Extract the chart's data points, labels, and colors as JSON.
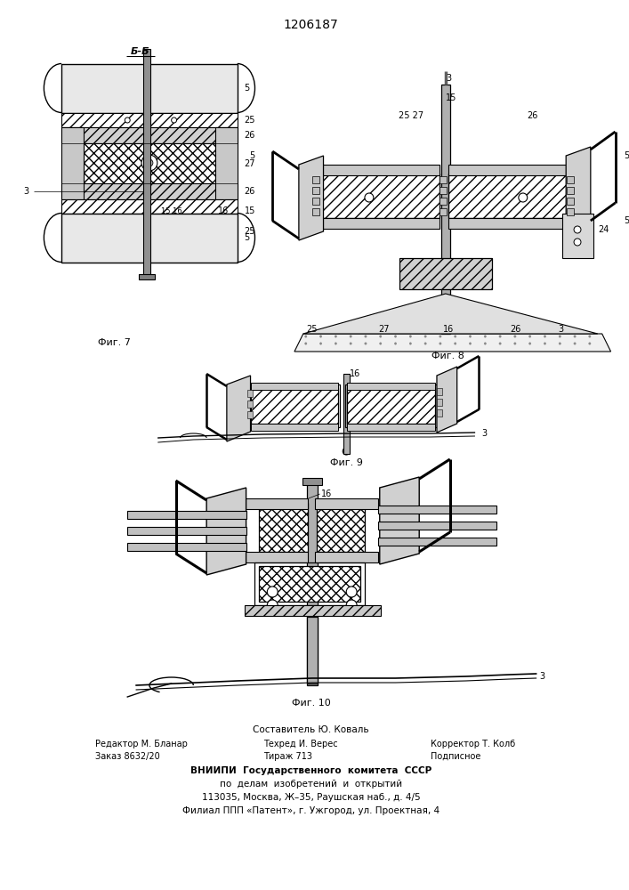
{
  "patent_number": "1206187",
  "fig7_label": "Фиг. 7",
  "fig8_label": "Фиг. 8",
  "fig9_label": "Фиг. 9",
  "fig10_label": "Фиг. 10",
  "section_label": "Б-Б",
  "footer_line1": "Составитель Ю. Коваль",
  "footer_line2_left": "Редактор М. Бланар",
  "footer_line2_mid": "Техред И. Верес",
  "footer_line2_right": "Корректор Т. Колб",
  "footer_line3_left": "Заказ 8632/20",
  "footer_line3_mid": "Тираж 713",
  "footer_line3_right": "Подписное",
  "footer_line4": "ВНИИПИ  Государственного  комитета  СССР",
  "footer_line5": "по  делам  изобретений  и  открытий",
  "footer_line6": "113035, Москва, Ж–35, Раушская наб., д. 4/5",
  "footer_line7": "Филиал ППП «Патент», г. Ужгород, ул. Проектная, 4",
  "bg_color": "#ffffff",
  "text_color": "#000000"
}
